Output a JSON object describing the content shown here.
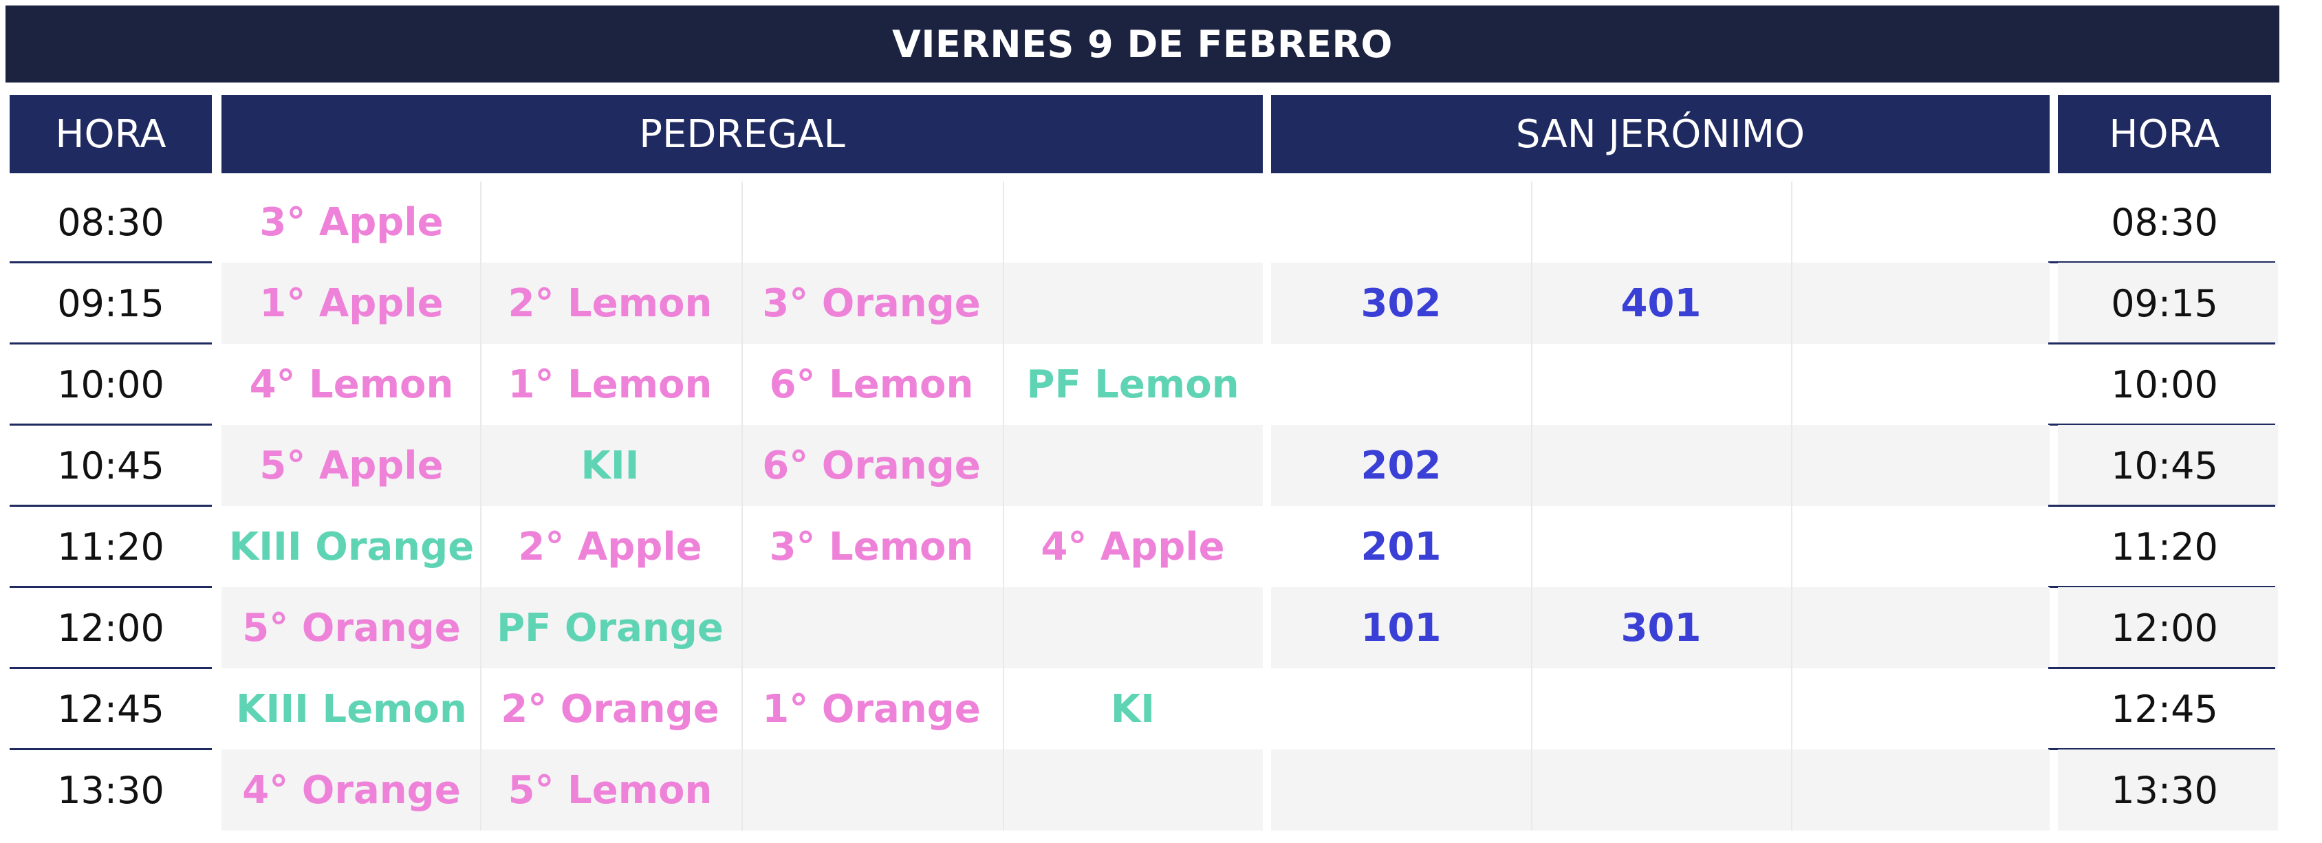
{
  "title": "VIERNES 9 DE FEBRERO",
  "headers": {
    "hora_left": "HORA",
    "pedregal": "PEDREGAL",
    "san_jeronimo": "SAN JERÓNIMO",
    "hora_right": "HORA"
  },
  "colors": {
    "title_bg": "#1c2340",
    "header_bg": "#1f2a60",
    "pink": "#ee82d8",
    "teal": "#5fd4b4",
    "blue": "#3a3fd6",
    "stripe": "#f4f4f4"
  },
  "rows": [
    {
      "time": "08:30",
      "pedregal": [
        {
          "text": "3° Apple",
          "color": "pink"
        },
        {
          "text": "",
          "color": "pink"
        },
        {
          "text": "",
          "color": "pink"
        },
        {
          "text": "",
          "color": "pink"
        }
      ],
      "san_jeronimo": [
        {
          "text": ""
        },
        {
          "text": ""
        },
        {
          "text": ""
        }
      ]
    },
    {
      "time": "09:15",
      "pedregal": [
        {
          "text": "1° Apple",
          "color": "pink"
        },
        {
          "text": "2° Lemon",
          "color": "pink"
        },
        {
          "text": "3° Orange",
          "color": "pink"
        },
        {
          "text": "",
          "color": "pink"
        }
      ],
      "san_jeronimo": [
        {
          "text": "302"
        },
        {
          "text": "401"
        },
        {
          "text": ""
        }
      ]
    },
    {
      "time": "10:00",
      "pedregal": [
        {
          "text": "4° Lemon",
          "color": "pink"
        },
        {
          "text": "1° Lemon",
          "color": "pink"
        },
        {
          "text": "6° Lemon",
          "color": "pink"
        },
        {
          "text": "PF Lemon",
          "color": "teal"
        }
      ],
      "san_jeronimo": [
        {
          "text": ""
        },
        {
          "text": ""
        },
        {
          "text": ""
        }
      ]
    },
    {
      "time": "10:45",
      "pedregal": [
        {
          "text": "5° Apple",
          "color": "pink"
        },
        {
          "text": "KII",
          "color": "teal"
        },
        {
          "text": "6° Orange",
          "color": "pink"
        },
        {
          "text": "",
          "color": "pink"
        }
      ],
      "san_jeronimo": [
        {
          "text": "202"
        },
        {
          "text": ""
        },
        {
          "text": ""
        }
      ]
    },
    {
      "time": "11:20",
      "pedregal": [
        {
          "text": "KIII Orange",
          "color": "teal"
        },
        {
          "text": "2° Apple",
          "color": "pink"
        },
        {
          "text": "3° Lemon",
          "color": "pink"
        },
        {
          "text": "4° Apple",
          "color": "pink"
        }
      ],
      "san_jeronimo": [
        {
          "text": "201"
        },
        {
          "text": ""
        },
        {
          "text": ""
        }
      ]
    },
    {
      "time": "12:00",
      "pedregal": [
        {
          "text": "5° Orange",
          "color": "pink"
        },
        {
          "text": "PF Orange",
          "color": "teal"
        },
        {
          "text": "",
          "color": "pink"
        },
        {
          "text": "",
          "color": "pink"
        }
      ],
      "san_jeronimo": [
        {
          "text": "101"
        },
        {
          "text": "301"
        },
        {
          "text": ""
        }
      ]
    },
    {
      "time": "12:45",
      "pedregal": [
        {
          "text": "KIII Lemon",
          "color": "teal"
        },
        {
          "text": "2° Orange",
          "color": "pink"
        },
        {
          "text": "1° Orange",
          "color": "pink"
        },
        {
          "text": "KI",
          "color": "teal"
        }
      ],
      "san_jeronimo": [
        {
          "text": ""
        },
        {
          "text": ""
        },
        {
          "text": ""
        }
      ]
    },
    {
      "time": "13:30",
      "pedregal": [
        {
          "text": "4° Orange",
          "color": "pink"
        },
        {
          "text": "5° Lemon",
          "color": "pink"
        },
        {
          "text": "",
          "color": "pink"
        },
        {
          "text": "",
          "color": "pink"
        }
      ],
      "san_jeronimo": [
        {
          "text": ""
        },
        {
          "text": ""
        },
        {
          "text": ""
        }
      ]
    }
  ]
}
